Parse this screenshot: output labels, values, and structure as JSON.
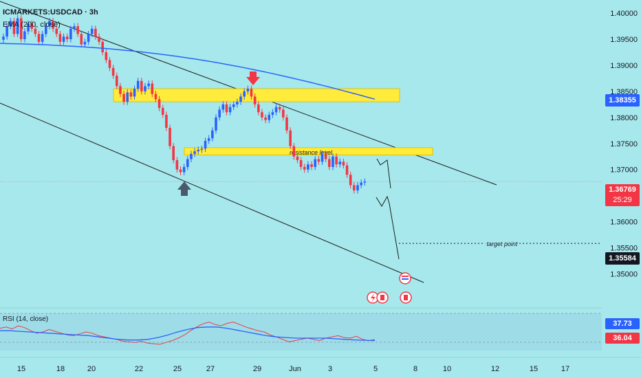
{
  "header": {
    "symbol": "ICMARKETS:USDCAD · 3h",
    "ema_label": "EMA (200, close)"
  },
  "price_axis": {
    "ticks": [
      "1.40000",
      "1.39500",
      "1.39000",
      "1.38500",
      "1.38000",
      "1.37500",
      "1.37000",
      "1.36500",
      "1.36000",
      "1.35500",
      "1.35000"
    ],
    "tick_values": [
      1.4,
      1.395,
      1.39,
      1.385,
      1.38,
      1.375,
      1.37,
      1.365,
      1.36,
      1.355,
      1.35
    ]
  },
  "time_axis": {
    "ticks": [
      "15",
      "18",
      "20",
      "22",
      "25",
      "27",
      "29",
      "Jun",
      "3",
      "5",
      "8",
      "10",
      "12",
      "15",
      "17"
    ],
    "tick_x": [
      31,
      88,
      133,
      202,
      258,
      306,
      374,
      429,
      480,
      546,
      604,
      650,
      720,
      776,
      822
    ]
  },
  "badges": {
    "ema_price": {
      "text": "1.38355",
      "color": "#2962ff"
    },
    "last_price": {
      "text": "1.36769",
      "countdown": "25:29",
      "color": "#f23645"
    },
    "target_price": {
      "text": "1.35584",
      "color": "#131722"
    },
    "rsi_value": {
      "text": "37.73",
      "color": "#2962ff"
    },
    "rsi_ma_value": {
      "text": "36.04",
      "color": "#f23645"
    }
  },
  "annotations": {
    "resistance_label": "resistance level",
    "target_label": "target point"
  },
  "rsi": {
    "label": "RSI (14, close)"
  },
  "colors": {
    "background": "#a7e8ec",
    "up_candle": "#2962ff",
    "down_candle": "#f23645",
    "ema_line": "#2962ff",
    "zone_fill": "#ffeb3b",
    "rsi_line": "#f23645",
    "rsi_ma_line": "#2962ff"
  },
  "chart_data": {
    "type": "candlestick",
    "symbol": "ICMARKETS:USDCAD",
    "timeframe": "3h",
    "ylim": [
      1.3465,
      1.4012
    ],
    "y_ticks": [
      1.35,
      1.355,
      1.36,
      1.365,
      1.37,
      1.375,
      1.38,
      1.385,
      1.39,
      1.395,
      1.4
    ],
    "close_series": [
      1.3955,
      1.3975,
      1.3985,
      1.396,
      1.399,
      1.395,
      1.3965,
      1.398,
      1.397,
      1.396,
      1.3945,
      1.396,
      1.3975,
      1.3985,
      1.397,
      1.396,
      1.3945,
      1.3955,
      1.395,
      1.397,
      1.3975,
      1.396,
      1.394,
      1.3945,
      1.396,
      1.397,
      1.3955,
      1.3945,
      1.3925,
      1.391,
      1.3895,
      1.388,
      1.386,
      1.3845,
      1.383,
      1.3848,
      1.384,
      1.3855,
      1.387,
      1.385,
      1.386,
      1.3865,
      1.3845,
      1.3835,
      1.3818,
      1.3805,
      1.378,
      1.3745,
      1.3718,
      1.37,
      1.3695,
      1.3705,
      1.372,
      1.373,
      1.3735,
      1.3738,
      1.374,
      1.3755,
      1.376,
      1.3775,
      1.38,
      1.3815,
      1.3825,
      1.381,
      1.382,
      1.3825,
      1.383,
      1.384,
      1.385,
      1.3855,
      1.384,
      1.3825,
      1.381,
      1.38,
      1.3795,
      1.3805,
      1.381,
      1.382,
      1.3815,
      1.38,
      1.3775,
      1.3745,
      1.3725,
      1.3718,
      1.3705,
      1.37,
      1.371,
      1.3705,
      1.372,
      1.3715,
      1.373,
      1.372,
      1.3705,
      1.3725,
      1.371,
      1.3715,
      1.3708,
      1.369,
      1.367,
      1.366,
      1.367,
      1.3675,
      1.3677
    ],
    "ema200": {
      "name": "EMA (200, close)",
      "color": "#2962ff",
      "start": 1.3942,
      "end": 1.3835
    },
    "last_price": 1.36769,
    "ema_value": 1.38355,
    "target_price": 1.35584,
    "zones": [
      {
        "from": 1.383,
        "to": 1.3855
      },
      {
        "from": 1.3728,
        "to": 1.3742,
        "label": "resistance level"
      }
    ],
    "rsi": {
      "name": "RSI (14, close)",
      "value": 37.73,
      "ma_value": 36.04
    },
    "rsi_series": [
      56,
      58,
      55,
      60,
      57,
      52,
      48,
      50,
      54,
      51,
      48,
      45,
      44,
      47,
      50,
      48,
      44,
      42,
      40,
      38,
      35,
      34,
      33,
      35,
      32,
      31,
      30,
      33,
      36,
      40,
      45,
      52,
      58,
      63,
      66,
      62,
      60,
      64,
      66,
      62,
      58,
      55,
      52,
      50,
      45,
      42,
      38,
      34,
      36,
      38,
      40,
      38,
      36,
      40,
      42,
      44,
      41,
      40,
      43,
      38,
      36,
      37.73
    ],
    "rsi_ma_series": [
      52,
      52,
      51,
      50,
      49,
      48,
      47,
      46,
      45,
      44,
      42,
      40,
      38,
      37,
      37,
      38,
      41,
      45,
      50,
      54,
      57,
      58,
      58,
      56,
      53,
      50,
      47,
      44,
      42,
      41,
      40,
      40,
      40,
      40,
      39,
      38,
      37,
      36.5,
      36.04
    ]
  }
}
